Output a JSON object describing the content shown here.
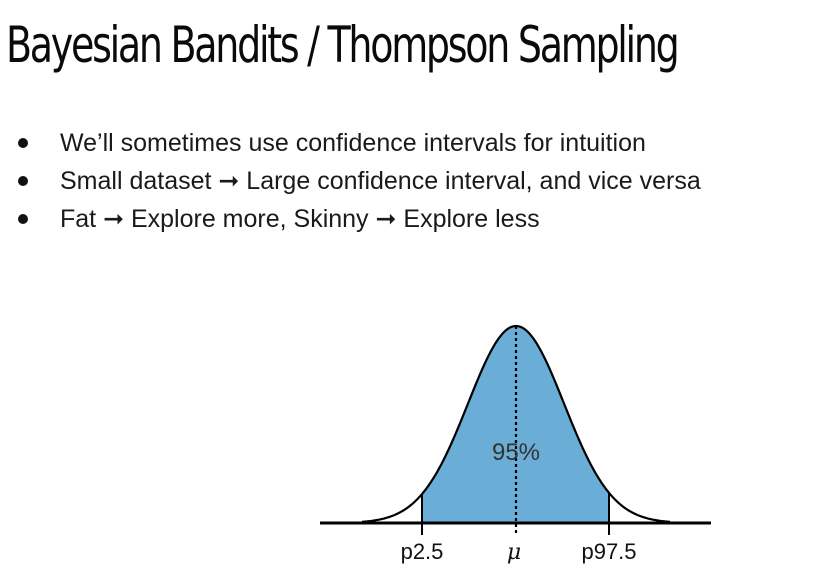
{
  "slide": {
    "title": "Bayesian Bandits / Thompson Sampling",
    "bullets": [
      "We’ll sometimes use confidence intervals for intuition",
      "Small dataset ➞ Large confidence interval, and vice versa",
      "Fat ➞ Explore more, Skinny ➞ Explore less"
    ]
  },
  "figure": {
    "center_label": "95%",
    "ticks": {
      "left": "p2.5",
      "center": "μ",
      "right": "p97.5"
    },
    "colors": {
      "fill": "#6aadd6",
      "line": "#000000"
    }
  }
}
